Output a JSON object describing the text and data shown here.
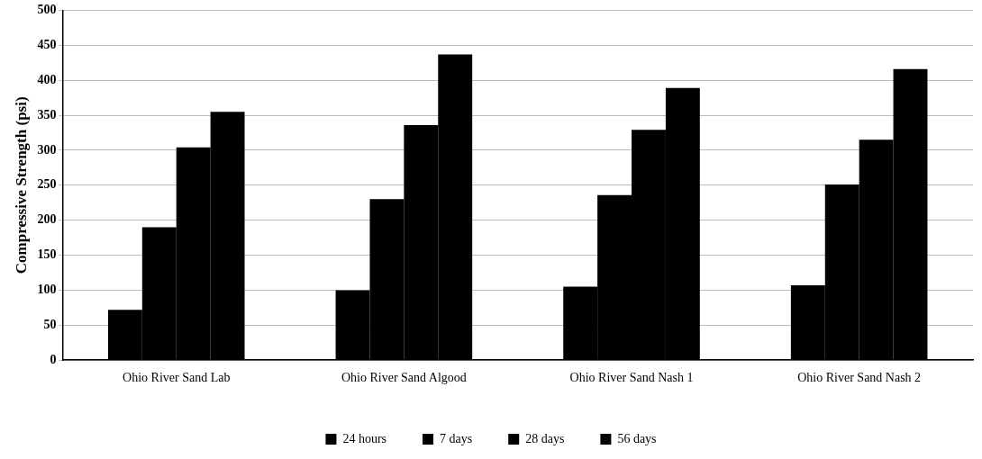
{
  "chart_data": {
    "type": "bar",
    "ylabel": "Compressive Strength (psi)",
    "categories": [
      "Ohio River Sand Lab",
      "Ohio River Sand Algood",
      "Ohio River Sand Nash 1",
      "Ohio River Sand Nash 2"
    ],
    "series": [
      {
        "name": "24 hours",
        "color": "#000000",
        "values": [
          72,
          100,
          105,
          107
        ]
      },
      {
        "name": "7 days",
        "color": "#000000",
        "values": [
          190,
          230,
          236,
          251
        ]
      },
      {
        "name": "28 days",
        "color": "#000000",
        "values": [
          304,
          336,
          329,
          315
        ]
      },
      {
        "name": "56 days",
        "color": "#000000",
        "values": [
          355,
          437,
          389,
          416
        ]
      }
    ],
    "ylim": [
      0,
      500
    ],
    "yticks": [
      0,
      50,
      100,
      150,
      200,
      250,
      300,
      350,
      400,
      450,
      500
    ],
    "grid": "y",
    "legend": "bottom"
  }
}
